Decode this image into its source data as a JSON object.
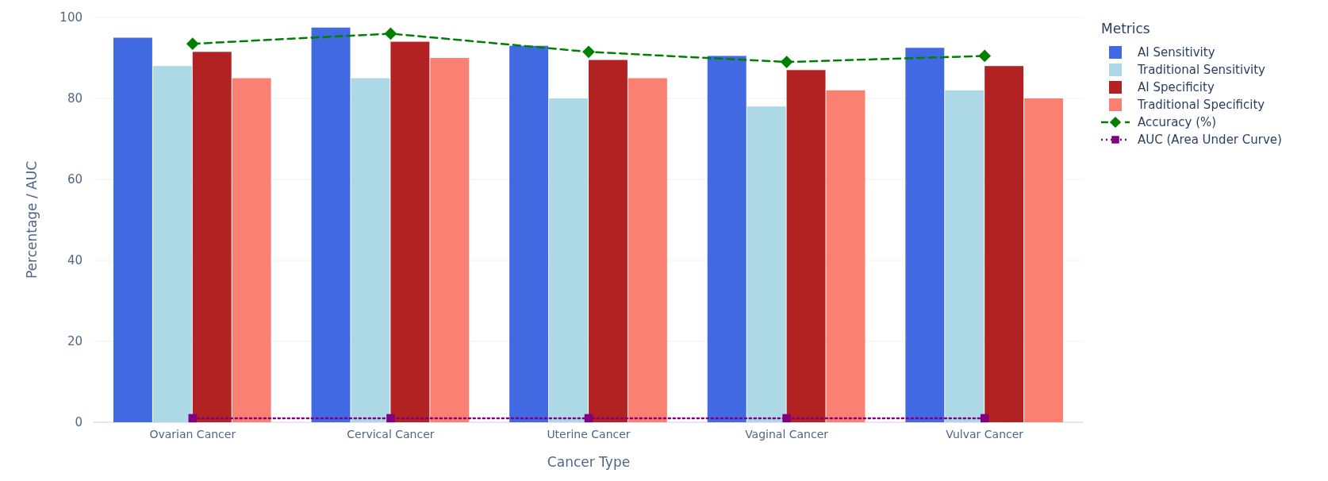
{
  "chart_data": {
    "type": "bar",
    "xlabel": "Cancer Type",
    "ylabel": "Percentage / AUC",
    "legend_title": "Metrics",
    "categories": [
      "Ovarian Cancer",
      "Cervical Cancer",
      "Uterine Cancer",
      "Vaginal Cancer",
      "Vulvar Cancer"
    ],
    "series": [
      {
        "name": "AI Sensitivity",
        "color": "#4169e1",
        "values": [
          95,
          97.5,
          93,
          90.5,
          92.5
        ]
      },
      {
        "name": "Traditional Sensitivity",
        "color": "#add8e6",
        "values": [
          88,
          85,
          80,
          78,
          82
        ]
      },
      {
        "name": "AI Specificity",
        "color": "#b22222",
        "values": [
          91.5,
          94,
          89.5,
          87,
          88
        ]
      },
      {
        "name": "Traditional Specificity",
        "color": "#fa8072",
        "values": [
          85,
          90,
          85,
          82,
          80
        ]
      },
      {
        "name": "Accuracy (%)",
        "type": "line",
        "color": "#008000",
        "marker": "diamond",
        "line_style": "dashed",
        "values": [
          93.5,
          96,
          91.5,
          89,
          90.5
        ]
      },
      {
        "name": "AUC (Area Under Curve)",
        "type": "line",
        "color": "#800080",
        "marker": "square",
        "line_style": "dotted",
        "values": [
          1,
          1,
          1,
          1,
          1
        ]
      }
    ],
    "ylim": [
      0,
      100
    ],
    "yticks": [
      0,
      20,
      40,
      60,
      80,
      100
    ],
    "grid": "y",
    "legend": "top right"
  }
}
